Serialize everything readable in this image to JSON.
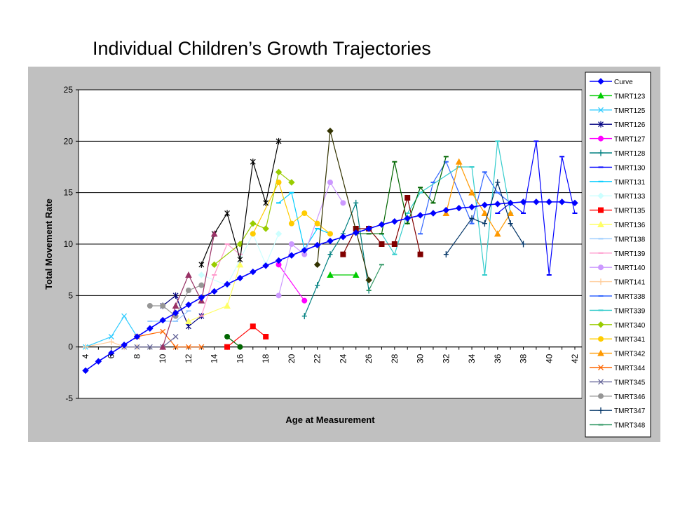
{
  "title": "Individual Children’s Growth Trajectories",
  "chart_data": {
    "type": "line",
    "title": "",
    "xlabel": "Age at Measurement",
    "ylabel": "Total Movement Rate",
    "xlim": [
      4,
      42
    ],
    "ylim": [
      -5,
      25
    ],
    "x_ticks": [
      4,
      6,
      8,
      10,
      12,
      14,
      16,
      18,
      20,
      22,
      24,
      26,
      28,
      30,
      32,
      34,
      36,
      38,
      40,
      42
    ],
    "y_ticks": [
      -5,
      0,
      5,
      10,
      15,
      20,
      25
    ],
    "grid": "horizontal",
    "legend_position": "right",
    "series": [
      {
        "name": "Curve",
        "color": "#0000ff",
        "marker": "diamond",
        "points": [
          [
            4,
            -2.3
          ],
          [
            5,
            -1.4
          ],
          [
            6,
            -0.6
          ],
          [
            7,
            0.2
          ],
          [
            8,
            1.0
          ],
          [
            9,
            1.8
          ],
          [
            10,
            2.6
          ],
          [
            11,
            3.3
          ],
          [
            12,
            4.1
          ],
          [
            13,
            4.8
          ],
          [
            14,
            5.4
          ],
          [
            15,
            6.1
          ],
          [
            16,
            6.7
          ],
          [
            17,
            7.3
          ],
          [
            18,
            7.9
          ],
          [
            19,
            8.4
          ],
          [
            20,
            8.9
          ],
          [
            21,
            9.4
          ],
          [
            22,
            9.9
          ],
          [
            23,
            10.3
          ],
          [
            24,
            10.7
          ],
          [
            25,
            11.1
          ],
          [
            26,
            11.5
          ],
          [
            27,
            11.9
          ],
          [
            28,
            12.2
          ],
          [
            29,
            12.5
          ],
          [
            30,
            12.8
          ],
          [
            31,
            13.0
          ],
          [
            32,
            13.3
          ],
          [
            33,
            13.5
          ],
          [
            34,
            13.6
          ],
          [
            35,
            13.8
          ],
          [
            36,
            13.9
          ],
          [
            37,
            14.0
          ],
          [
            38,
            14.1
          ],
          [
            39,
            14.1
          ],
          [
            40,
            14.1
          ],
          [
            41,
            14.1
          ],
          [
            42,
            14.0
          ]
        ]
      },
      {
        "name": "TMRT123",
        "color": "#00cc00",
        "marker": "triangle",
        "points": [
          [
            23,
            7.0
          ],
          [
            25,
            7.0
          ]
        ]
      },
      {
        "name": "TMRT125",
        "color": "#33ccff",
        "marker": "x",
        "points": [
          [
            4,
            0
          ],
          [
            6,
            1
          ],
          [
            7,
            3
          ],
          [
            8,
            1
          ]
        ]
      },
      {
        "name": "TMRT126",
        "color": "#000080",
        "marker": "star",
        "points": [
          [
            10,
            4
          ],
          [
            11,
            5
          ],
          [
            12,
            2
          ],
          [
            13,
            3
          ]
        ]
      },
      {
        "name": "TMRT127",
        "color": "#ff00ff",
        "marker": "circle",
        "points": [
          [
            19,
            8
          ],
          [
            21,
            4.5
          ]
        ]
      },
      {
        "name": "TMRT128",
        "color": "#008080",
        "marker": "plus",
        "points": [
          [
            21,
            3
          ],
          [
            22,
            6
          ],
          [
            23,
            9
          ],
          [
            24,
            11
          ],
          [
            25,
            14
          ],
          [
            26,
            5.5
          ]
        ]
      },
      {
        "name": "TMRT130",
        "color": "#0000ff",
        "marker": "dash",
        "points": [
          [
            36,
            13
          ],
          [
            37,
            14
          ],
          [
            38,
            13
          ],
          [
            39,
            20
          ],
          [
            40,
            7
          ],
          [
            41,
            18.5
          ],
          [
            42,
            13
          ]
        ]
      },
      {
        "name": "TMRT131",
        "color": "#00ccff",
        "marker": "dash",
        "points": [
          [
            19,
            14
          ],
          [
            20,
            15
          ],
          [
            21,
            9.5
          ],
          [
            22,
            11.5
          ],
          [
            23,
            11
          ]
        ]
      },
      {
        "name": "TMRT133",
        "color": "#ccffff",
        "marker": "diamond",
        "points": [
          [
            13,
            7
          ],
          [
            15,
            6
          ],
          [
            17,
            11
          ],
          [
            18,
            8
          ],
          [
            19,
            11
          ]
        ]
      },
      {
        "name": "TMRT135",
        "color": "#ff0000",
        "marker": "square",
        "points": [
          [
            15,
            0
          ],
          [
            17,
            2
          ],
          [
            18,
            1
          ]
        ]
      },
      {
        "name": "TMRT136",
        "color": "#ffff66",
        "marker": "triangle",
        "points": [
          [
            12,
            2.5
          ],
          [
            15,
            4
          ],
          [
            16,
            8
          ]
        ]
      },
      {
        "name": "TMRT138",
        "color": "#99ccff",
        "marker": "dash",
        "points": [
          [
            9,
            2.5
          ],
          [
            10,
            2.5
          ],
          [
            11,
            2.5
          ],
          [
            12,
            3.5
          ]
        ]
      },
      {
        "name": "TMRT139",
        "color": "#ff99cc",
        "marker": "dash",
        "points": [
          [
            13,
            3
          ],
          [
            14,
            7
          ],
          [
            15,
            10
          ],
          [
            16,
            9
          ]
        ]
      },
      {
        "name": "TMRT140",
        "color": "#cc99ff",
        "marker": "circle",
        "points": [
          [
            19,
            5
          ],
          [
            20,
            10
          ],
          [
            21,
            9
          ],
          [
            23,
            16
          ],
          [
            24,
            14
          ]
        ]
      },
      {
        "name": "TMRT141",
        "color": "#ffcc99",
        "marker": "plus",
        "points": [
          [
            4,
            0
          ],
          [
            6,
            0.5
          ],
          [
            7,
            0
          ],
          [
            8,
            0
          ]
        ]
      },
      {
        "name": "TMRT338",
        "color": "#3366ff",
        "marker": "dash",
        "points": [
          [
            30,
            11
          ],
          [
            31,
            16
          ],
          [
            32,
            18
          ],
          [
            34,
            12
          ],
          [
            35,
            17
          ],
          [
            36,
            15
          ],
          [
            37,
            14
          ]
        ]
      },
      {
        "name": "TMRT339",
        "color": "#33cccc",
        "marker": "dash",
        "points": [
          [
            27,
            11
          ],
          [
            28,
            9
          ],
          [
            29,
            13
          ],
          [
            30,
            15
          ],
          [
            33,
            17.5
          ],
          [
            34,
            17.5
          ],
          [
            35,
            7
          ],
          [
            36,
            20
          ],
          [
            37,
            13
          ]
        ]
      },
      {
        "name": "TMRT340",
        "color": "#99cc00",
        "marker": "diamond",
        "points": [
          [
            14,
            8
          ],
          [
            16,
            10
          ],
          [
            17,
            12
          ],
          [
            18,
            11.5
          ],
          [
            19,
            17
          ],
          [
            20,
            16
          ]
        ]
      },
      {
        "name": "TMRT341",
        "color": "#ffcc00",
        "marker": "circle",
        "points": [
          [
            17,
            11
          ],
          [
            19,
            16
          ],
          [
            20,
            12
          ],
          [
            21,
            13
          ],
          [
            22,
            12
          ],
          [
            23,
            11
          ]
        ]
      },
      {
        "name": "TMRT342",
        "color": "#ff9900",
        "marker": "triangle",
        "points": [
          [
            32,
            13
          ],
          [
            33,
            18
          ],
          [
            34,
            15
          ],
          [
            35,
            13
          ],
          [
            36,
            11
          ],
          [
            37,
            13
          ]
        ]
      },
      {
        "name": "TMRT344",
        "color": "#ff6600",
        "marker": "x",
        "points": [
          [
            8,
            1
          ],
          [
            10,
            1.5
          ],
          [
            11,
            0
          ],
          [
            12,
            0
          ],
          [
            13,
            0
          ]
        ]
      },
      {
        "name": "TMRT345",
        "color": "#666699",
        "marker": "x",
        "points": [
          [
            7,
            0
          ],
          [
            8,
            0
          ],
          [
            9,
            0
          ],
          [
            10,
            0
          ],
          [
            11,
            1
          ]
        ]
      },
      {
        "name": "TMRT346",
        "color": "#969696",
        "marker": "circle",
        "points": [
          [
            9,
            4
          ],
          [
            10,
            4
          ],
          [
            11,
            3
          ],
          [
            12,
            5.5
          ],
          [
            13,
            6
          ]
        ]
      },
      {
        "name": "TMRT347",
        "color": "#003366",
        "marker": "plus",
        "points": [
          [
            32,
            9
          ],
          [
            34,
            12.5
          ],
          [
            35,
            12
          ],
          [
            36,
            16
          ],
          [
            37,
            12
          ],
          [
            38,
            10
          ]
        ]
      },
      {
        "name": "TMRT348",
        "color": "#339966",
        "marker": "dash",
        "points": [
          [
            26,
            5.5
          ],
          [
            27,
            8
          ]
        ]
      },
      {
        "name": "",
        "color": "#000000",
        "marker": "star",
        "points": [
          [
            13,
            8
          ],
          [
            14,
            11
          ],
          [
            15,
            13
          ],
          [
            16,
            8.5
          ],
          [
            17,
            18
          ],
          [
            18,
            14
          ],
          [
            19,
            20
          ]
        ]
      },
      {
        "name": "",
        "color": "#800000",
        "marker": "square",
        "points": [
          [
            24,
            9
          ],
          [
            25,
            11.5
          ],
          [
            26,
            11.5
          ],
          [
            27,
            10
          ],
          [
            28,
            10
          ],
          [
            29,
            14.5
          ],
          [
            30,
            9
          ]
        ]
      },
      {
        "name": "",
        "color": "#333300",
        "marker": "diamond",
        "points": [
          [
            22,
            8
          ],
          [
            23,
            21
          ],
          [
            26,
            6.5
          ]
        ]
      },
      {
        "name": "",
        "color": "#993366",
        "marker": "triangle",
        "points": [
          [
            10,
            0
          ],
          [
            11,
            4
          ],
          [
            12,
            7
          ],
          [
            13,
            4.5
          ],
          [
            14,
            11
          ]
        ]
      },
      {
        "name": "",
        "color": "#006600",
        "marker": "circle",
        "points": [
          [
            15,
            1
          ],
          [
            16,
            0
          ]
        ]
      },
      {
        "name": "",
        "color": "#006600",
        "marker": "dash",
        "points": [
          [
            25,
            11
          ],
          [
            26,
            11
          ],
          [
            27,
            11
          ],
          [
            28,
            18
          ],
          [
            29,
            12
          ],
          [
            30,
            15.5
          ],
          [
            31,
            14
          ],
          [
            32,
            18.5
          ]
        ]
      }
    ]
  }
}
